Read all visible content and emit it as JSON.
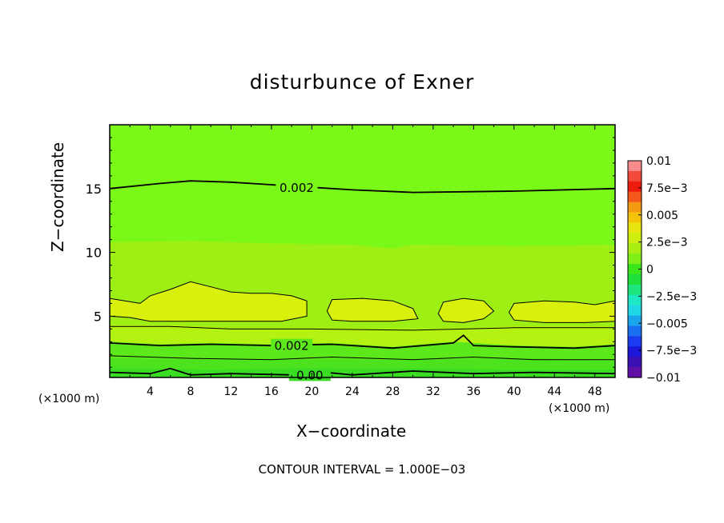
{
  "chart_data": {
    "type": "heatmap",
    "title": "disturbunce of Exner",
    "xlabel": "X−coordinate",
    "ylabel": "Z−coordinate",
    "x_unit_label": "(×1000 m)",
    "z_unit_label": "(×1000 m)",
    "footnote": "CONTOUR INTERVAL = 1.000E−03",
    "xlim": [
      0,
      50
    ],
    "ylim": [
      0.2,
      20
    ],
    "x_ticks": [
      "4",
      "8",
      "12",
      "16",
      "20",
      "24",
      "28",
      "32",
      "36",
      "40",
      "44",
      "48"
    ],
    "y_ticks": [
      "5",
      "10",
      "15"
    ],
    "contour_interval": 0.001,
    "contour_labels": [
      "0.002",
      "0.002",
      "0.00"
    ],
    "colorbar": {
      "labels": [
        "0.01",
        "7.5e−3",
        "0.005",
        "2.5e−3",
        "0",
        "−2.5e−3",
        "−0.005",
        "−7.5e−3",
        "−0.01"
      ],
      "colors": [
        "#f78a8a",
        "#f24a3a",
        "#ee1c0c",
        "#f5581a",
        "#f39a12",
        "#f4c40a",
        "#e6e60e",
        "#cfee10",
        "#a8ee12",
        "#7ef018",
        "#3ce61c",
        "#1fdf3a",
        "#1ee57e",
        "#1ee8c4",
        "#1ed8e8",
        "#1aa4ec",
        "#1a70ee",
        "#1a3cf0",
        "#1c16d8",
        "#3a10b4",
        "#6010a4"
      ]
    },
    "colors": {
      "upper_layer": "#7af818",
      "mid_layer": "#9ef014",
      "band": "#b4f212",
      "cells": "#d8f00c",
      "low_green": "#5de81c",
      "surface": "#3adc24"
    }
  }
}
